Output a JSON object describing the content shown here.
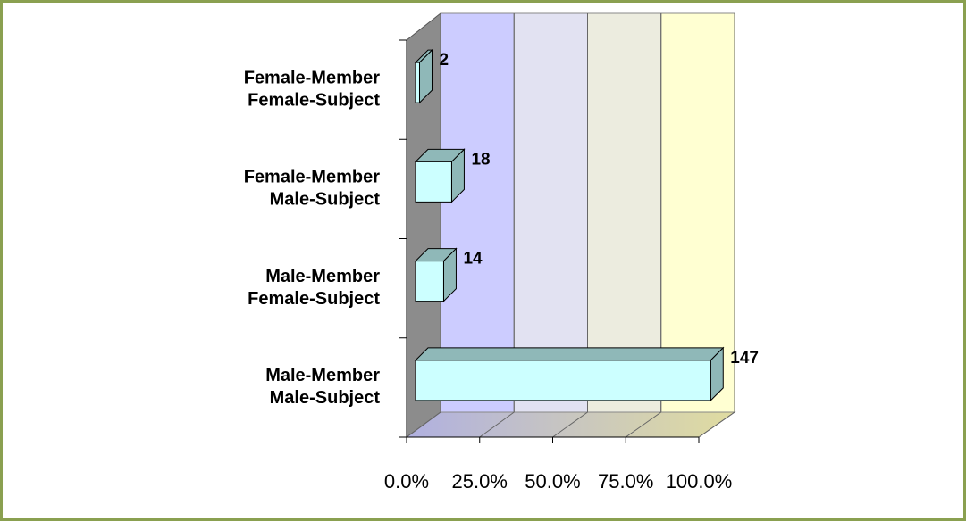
{
  "chart_data": {
    "type": "bar3d",
    "categories": [
      [
        "Female-Member",
        "Female-Subject"
      ],
      [
        "Female-Member",
        "Male-Subject"
      ],
      [
        "Male-Member",
        "Female-Subject"
      ],
      [
        "Male-Member",
        "Male-Subject"
      ]
    ],
    "values": [
      2,
      18,
      14,
      147
    ],
    "color": "#ccffff",
    "side_color": "#8fb8b8",
    "xlim": [
      0,
      147
    ],
    "xticks": [
      {
        "value": 0,
        "label": "0.0%"
      },
      {
        "value": 36.75,
        "label": "25.0%"
      },
      {
        "value": 73.5,
        "label": "50.0%"
      },
      {
        "value": 110.25,
        "label": "75.0%"
      },
      {
        "value": 147,
        "label": "100.0%"
      }
    ],
    "wall_colors": [
      "#ccccff",
      "#e2e2f2",
      "#ececdf",
      "#ffffd2"
    ]
  }
}
